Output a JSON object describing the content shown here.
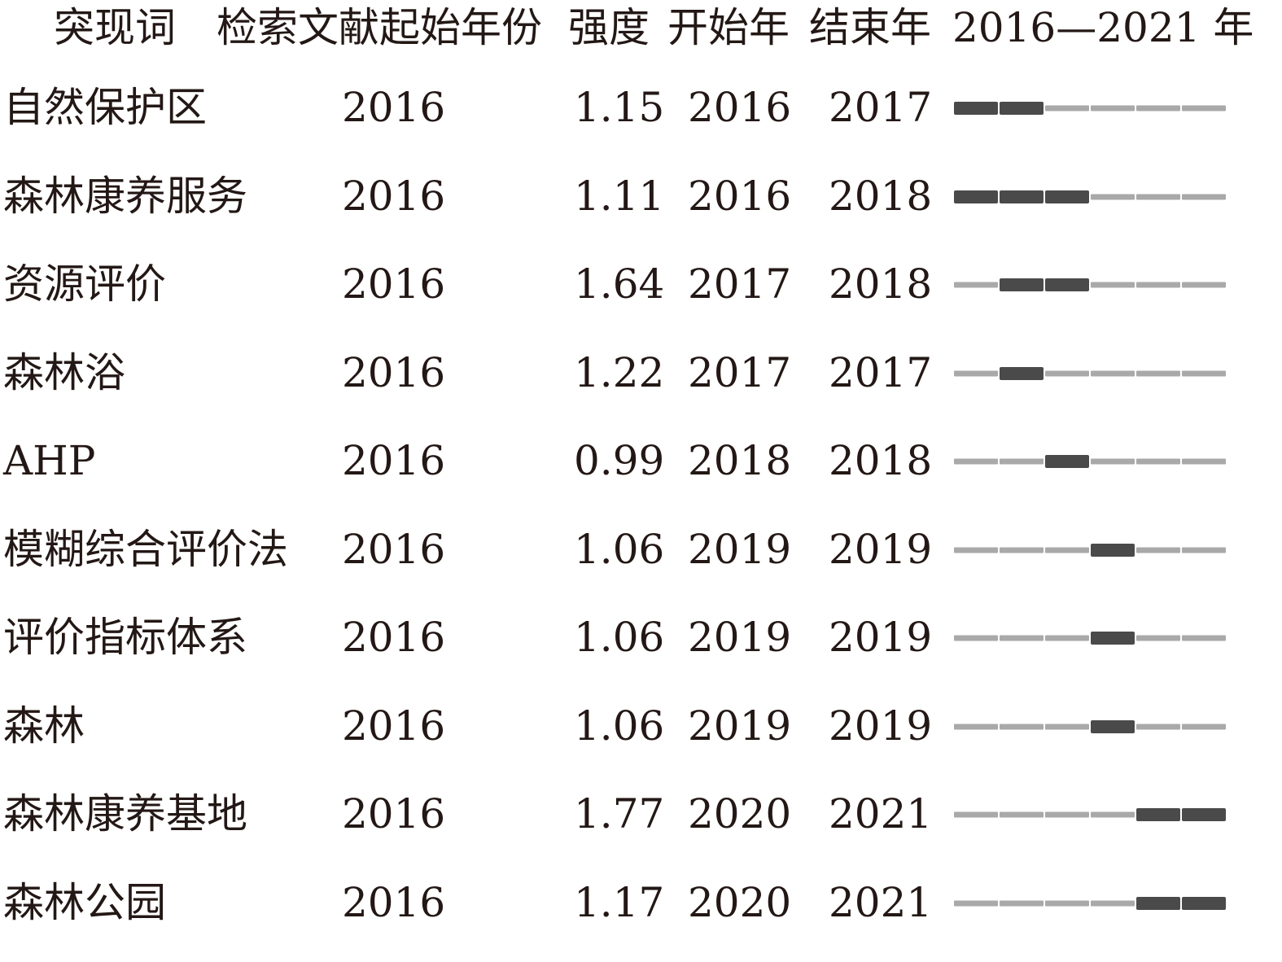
{
  "chart_data": {
    "type": "table",
    "headers": {
      "keyword": "突现词",
      "begin_year": "检索文献起始年份",
      "strength": "强度",
      "start_year": "开始年",
      "end_year": "结束年",
      "timeline": "2016—2021 年"
    },
    "timeline_range": [
      2016,
      2021
    ],
    "colors": {
      "burst": "#4a4a4a",
      "baseline": "#a9a9a9",
      "text": "#231815"
    },
    "rows": [
      {
        "keyword": "自然保护区",
        "begin_year": "2016",
        "strength": "1.15",
        "start": "2016",
        "end": "2017"
      },
      {
        "keyword": "森林康养服务",
        "begin_year": "2016",
        "strength": "1.11",
        "start": "2016",
        "end": "2018"
      },
      {
        "keyword": "资源评价",
        "begin_year": "2016",
        "strength": "1.64",
        "start": "2017",
        "end": "2018"
      },
      {
        "keyword": "森林浴",
        "begin_year": "2016",
        "strength": "1.22",
        "start": "2017",
        "end": "2017"
      },
      {
        "keyword": "AHP",
        "begin_year": "2016",
        "strength": "0.99",
        "start": "2018",
        "end": "2018"
      },
      {
        "keyword": "模糊综合评价法",
        "begin_year": "2016",
        "strength": "1.06",
        "start": "2019",
        "end": "2019"
      },
      {
        "keyword": "评价指标体系",
        "begin_year": "2016",
        "strength": "1.06",
        "start": "2019",
        "end": "2019"
      },
      {
        "keyword": "森林",
        "begin_year": "2016",
        "strength": "1.06",
        "start": "2019",
        "end": "2019"
      },
      {
        "keyword": "森林康养基地",
        "begin_year": "2016",
        "strength": "1.77",
        "start": "2020",
        "end": "2021"
      },
      {
        "keyword": "森林公园",
        "begin_year": "2016",
        "strength": "1.17",
        "start": "2020",
        "end": "2021"
      }
    ]
  }
}
